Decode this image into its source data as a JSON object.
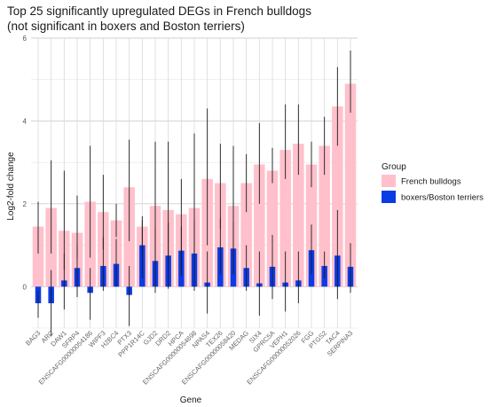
{
  "chart_data": {
    "type": "bar",
    "title_line1": "Top 25 significantly upregulated DEGs in French bulldogs",
    "title_line2": "(not significant in boxers and Boston terriers)",
    "xlabel": "Gene",
    "ylabel": "Log2-fold change",
    "ylim": [
      -1.0,
      6.0
    ],
    "yticks": [
      0,
      2,
      4,
      6
    ],
    "grid": true,
    "legend": {
      "title": "Group",
      "placement": "right"
    },
    "categories": [
      "BAG3",
      "ARC",
      "DAW1",
      "SFRP4",
      "ENSCAFG00000054186",
      "WIPF3",
      "H2BC4",
      "PTX3",
      "PPP1R14C",
      "GJD2",
      "DRD2",
      "HPCA",
      "ENSCAFG00000054698",
      "NPAS4",
      "TEX26",
      "ENSCAFG00000058420",
      "MEDAG",
      "SIX4",
      "GPRC5A",
      "VEPH1",
      "ENSCAFG00000052026",
      "FGG",
      "PTGS2",
      "TAC4",
      "SERPINA3"
    ],
    "series": [
      {
        "name": "French bulldogs",
        "color": "#ffc0cb",
        "values": [
          1.45,
          1.9,
          1.35,
          1.3,
          2.05,
          1.8,
          1.6,
          2.4,
          1.45,
          1.95,
          1.85,
          1.75,
          1.9,
          2.6,
          2.5,
          1.95,
          2.5,
          2.95,
          2.8,
          3.3,
          3.45,
          2.95,
          3.4,
          4.35,
          4.9
        ],
        "err_low": [
          0.8,
          0.8,
          0.4,
          0.7,
          0.7,
          0.9,
          1.2,
          1.1,
          0.8,
          0.5,
          0.5,
          0.4,
          0.8,
          1.0,
          1.4,
          0.7,
          1.8,
          2.0,
          2.5,
          2.6,
          2.7,
          2.4,
          2.7,
          3.4,
          4.2
        ],
        "err_high": [
          2.05,
          3.05,
          2.8,
          2.2,
          3.4,
          2.7,
          2.0,
          3.55,
          1.6,
          3.5,
          3.5,
          2.6,
          3.7,
          4.3,
          3.45,
          3.4,
          3.2,
          3.95,
          3.35,
          4.4,
          4.4,
          3.5,
          4.1,
          5.3,
          5.7
        ]
      },
      {
        "name": "boxers/Boston terriers",
        "color": "#0a3ce6",
        "values": [
          -0.4,
          -0.4,
          0.15,
          0.45,
          -0.15,
          0.5,
          0.55,
          -0.2,
          1.0,
          0.62,
          0.75,
          0.87,
          0.8,
          0.1,
          0.95,
          0.92,
          0.45,
          0.08,
          0.48,
          0.1,
          0.15,
          0.88,
          0.5,
          0.75,
          0.48
        ],
        "err_low": [
          -0.75,
          -1.2,
          -0.55,
          -0.25,
          -0.8,
          -0.1,
          0.0,
          -0.95,
          0.2,
          -0.15,
          -0.05,
          0.25,
          -0.1,
          -0.65,
          0.3,
          0.3,
          -0.1,
          -0.7,
          -0.3,
          -0.6,
          -0.4,
          0.3,
          0.2,
          -0.3,
          -0.15
        ],
        "err_high": [
          -0.1,
          0.4,
          0.8,
          1.0,
          0.45,
          1.2,
          1.15,
          0.5,
          1.7,
          1.45,
          1.55,
          1.45,
          1.6,
          0.85,
          1.65,
          1.55,
          1.0,
          0.85,
          1.25,
          0.85,
          0.85,
          1.5,
          0.85,
          1.85,
          1.05
        ]
      }
    ]
  }
}
